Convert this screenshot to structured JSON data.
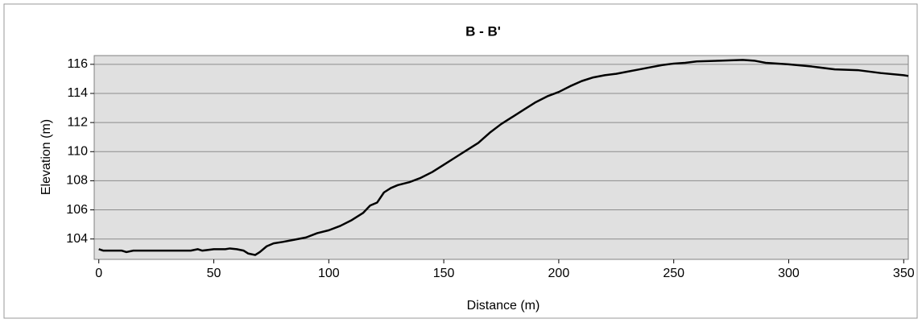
{
  "chart_data": {
    "type": "line",
    "title": "B - B'",
    "x_label": "Distance (m)",
    "y_label": "Elevation (m)",
    "x": [
      0,
      2,
      5,
      10,
      12,
      15,
      20,
      30,
      40,
      43,
      45,
      50,
      55,
      57,
      60,
      63,
      65,
      68,
      70,
      73,
      76,
      80,
      85,
      90,
      95,
      100,
      105,
      110,
      115,
      118,
      121,
      124,
      127,
      130,
      135,
      140,
      145,
      150,
      155,
      160,
      165,
      170,
      175,
      180,
      185,
      190,
      195,
      200,
      205,
      210,
      215,
      220,
      225,
      230,
      235,
      240,
      245,
      250,
      255,
      260,
      270,
      280,
      285,
      290,
      300,
      310,
      320,
      330,
      340,
      350,
      352
    ],
    "series": [
      {
        "name": "Elevation",
        "color": "#000000",
        "values": [
          103.3,
          103.2,
          103.2,
          103.2,
          103.1,
          103.2,
          103.2,
          103.2,
          103.2,
          103.3,
          103.2,
          103.3,
          103.3,
          103.35,
          103.3,
          103.2,
          103.0,
          102.9,
          103.1,
          103.5,
          103.7,
          103.8,
          103.95,
          104.1,
          104.4,
          104.6,
          104.9,
          105.3,
          105.8,
          106.3,
          106.5,
          107.2,
          107.5,
          107.7,
          107.9,
          108.2,
          108.6,
          109.1,
          109.6,
          110.1,
          110.6,
          111.3,
          111.9,
          112.4,
          112.9,
          113.4,
          113.8,
          114.1,
          114.5,
          114.85,
          115.1,
          115.25,
          115.35,
          115.5,
          115.65,
          115.8,
          115.95,
          116.05,
          116.1,
          116.2,
          116.25,
          116.3,
          116.25,
          116.1,
          116.0,
          115.85,
          115.65,
          115.6,
          115.4,
          115.25,
          115.2
        ]
      }
    ],
    "xlim": [
      -2,
      352
    ],
    "xticks": [
      0,
      50,
      100,
      150,
      200,
      250,
      300,
      350
    ],
    "ylim": [
      102.6,
      116.6
    ],
    "yticks": [
      104,
      106,
      108,
      110,
      112,
      114,
      116
    ],
    "grid": true
  }
}
